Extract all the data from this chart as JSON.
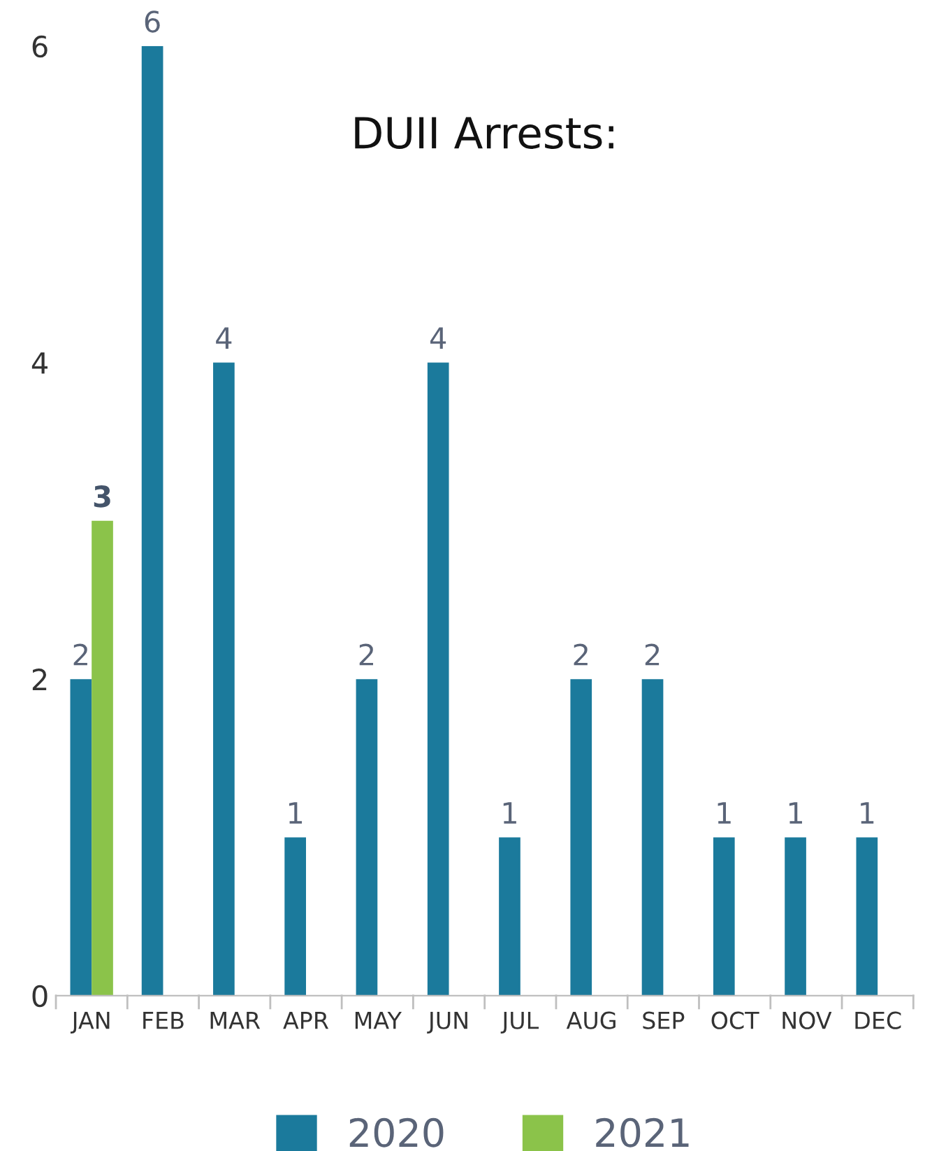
{
  "chart_data": {
    "type": "bar",
    "title": "DUII Arrests:",
    "categories": [
      "JAN",
      "FEB",
      "MAR",
      "APR",
      "MAY",
      "JUN",
      "JUL",
      "AUG",
      "SEP",
      "OCT",
      "NOV",
      "DEC"
    ],
    "series": [
      {
        "name": "2020",
        "color": "#1b7a9c",
        "values": [
          2,
          6,
          4,
          1,
          2,
          4,
          1,
          2,
          2,
          1,
          1,
          1
        ]
      },
      {
        "name": "2021",
        "color": "#8bc34a",
        "values": [
          3,
          null,
          null,
          null,
          null,
          null,
          null,
          null,
          null,
          null,
          null,
          null
        ]
      }
    ],
    "ylim": [
      0,
      6
    ],
    "yticks": [
      0,
      2,
      4,
      6
    ],
    "data_labels": true,
    "grid": false,
    "legend": "bottom"
  }
}
